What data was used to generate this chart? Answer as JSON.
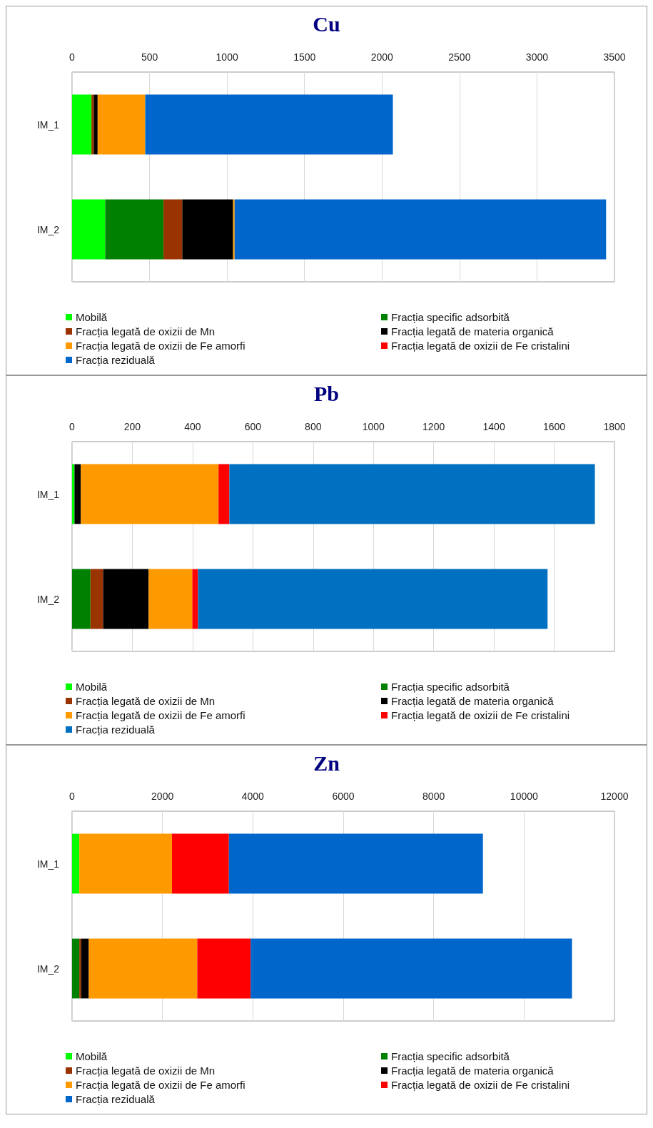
{
  "chart_data": [
    {
      "type": "bar",
      "title": "Cu",
      "orientation": "horizontal",
      "stacked": true,
      "categories": [
        "IM_1",
        "IM_2"
      ],
      "xlim": [
        0,
        3500
      ],
      "xticks": [
        0,
        500,
        1000,
        1500,
        2000,
        2500,
        3000,
        3500
      ],
      "grid": "x",
      "legend": "bottom",
      "series": [
        {
          "name": "Mobilă",
          "color": "#00ff00",
          "values": [
            125,
            214
          ]
        },
        {
          "name": "Fracția specific adsorbită",
          "color": "#008000",
          "values": [
            0,
            376
          ]
        },
        {
          "name": "Fracția legată de oxizii de Mn",
          "color": "#993300",
          "values": [
            15,
            121
          ]
        },
        {
          "name": "Fracția legată de materia organică",
          "color": "#000000",
          "values": [
            25,
            328
          ]
        },
        {
          "name": "Fracția legată de oxizii de Fe amorfi",
          "color": "#ff9900",
          "values": [
            307,
            10
          ]
        },
        {
          "name": "Fracția legată de oxizii de Fe cristalini",
          "color": "#ff0000",
          "values": [
            0,
            0
          ]
        },
        {
          "name": "Fracția reziduală",
          "color": "#0066cc",
          "values": [
            1598,
            2397
          ]
        }
      ]
    },
    {
      "type": "bar",
      "title": "Pb",
      "orientation": "horizontal",
      "stacked": true,
      "categories": [
        "IM_1",
        "IM_2"
      ],
      "xlim": [
        0,
        1800
      ],
      "xticks": [
        0,
        200,
        400,
        600,
        800,
        1000,
        1200,
        1400,
        1600,
        1800
      ],
      "grid": "x",
      "legend": "bottom",
      "series": [
        {
          "name": "Mobilă",
          "color": "#00ff00",
          "values": [
            8,
            0
          ]
        },
        {
          "name": "Fracția specific adsorbită",
          "color": "#008000",
          "values": [
            0,
            61
          ]
        },
        {
          "name": "Fracția legată de oxizii de Mn",
          "color": "#993300",
          "values": [
            0,
            42
          ]
        },
        {
          "name": "Fracția legată de materia organică",
          "color": "#000000",
          "values": [
            21,
            151
          ]
        },
        {
          "name": "Fracția legată de oxizii de Fe amorfi",
          "color": "#ff9900",
          "values": [
            457,
            145
          ]
        },
        {
          "name": "Fracția legată de oxizii de Fe cristalini",
          "color": "#ff0000",
          "values": [
            36,
            19
          ]
        },
        {
          "name": "Fracția reziduală",
          "color": "#0070c0",
          "values": [
            1213,
            1160
          ]
        }
      ]
    },
    {
      "type": "bar",
      "title": "Zn",
      "orientation": "horizontal",
      "stacked": true,
      "categories": [
        "IM_1",
        "IM_2"
      ],
      "xlim": [
        0,
        12000
      ],
      "xticks": [
        0,
        2000,
        4000,
        6000,
        8000,
        10000,
        12000
      ],
      "grid": "x",
      "legend": "bottom",
      "series": [
        {
          "name": "Mobilă",
          "color": "#00ff00",
          "values": [
            160,
            0
          ]
        },
        {
          "name": "Fracția specific adsorbită",
          "color": "#008000",
          "values": [
            0,
            160
          ]
        },
        {
          "name": "Fracția legată de oxizii de Mn",
          "color": "#993300",
          "values": [
            0,
            40
          ]
        },
        {
          "name": "Fracția legată de materia organică",
          "color": "#000000",
          "values": [
            0,
            170
          ]
        },
        {
          "name": "Fracția legată de oxizii de Fe amorfi",
          "color": "#ff9900",
          "values": [
            2050,
            2400
          ]
        },
        {
          "name": "Fracția legată de oxizii de Fe cristalini",
          "color": "#ff0000",
          "values": [
            1260,
            1180
          ]
        },
        {
          "name": "Fracția reziduală",
          "color": "#0066cc",
          "values": [
            5620,
            7110
          ]
        }
      ]
    }
  ]
}
